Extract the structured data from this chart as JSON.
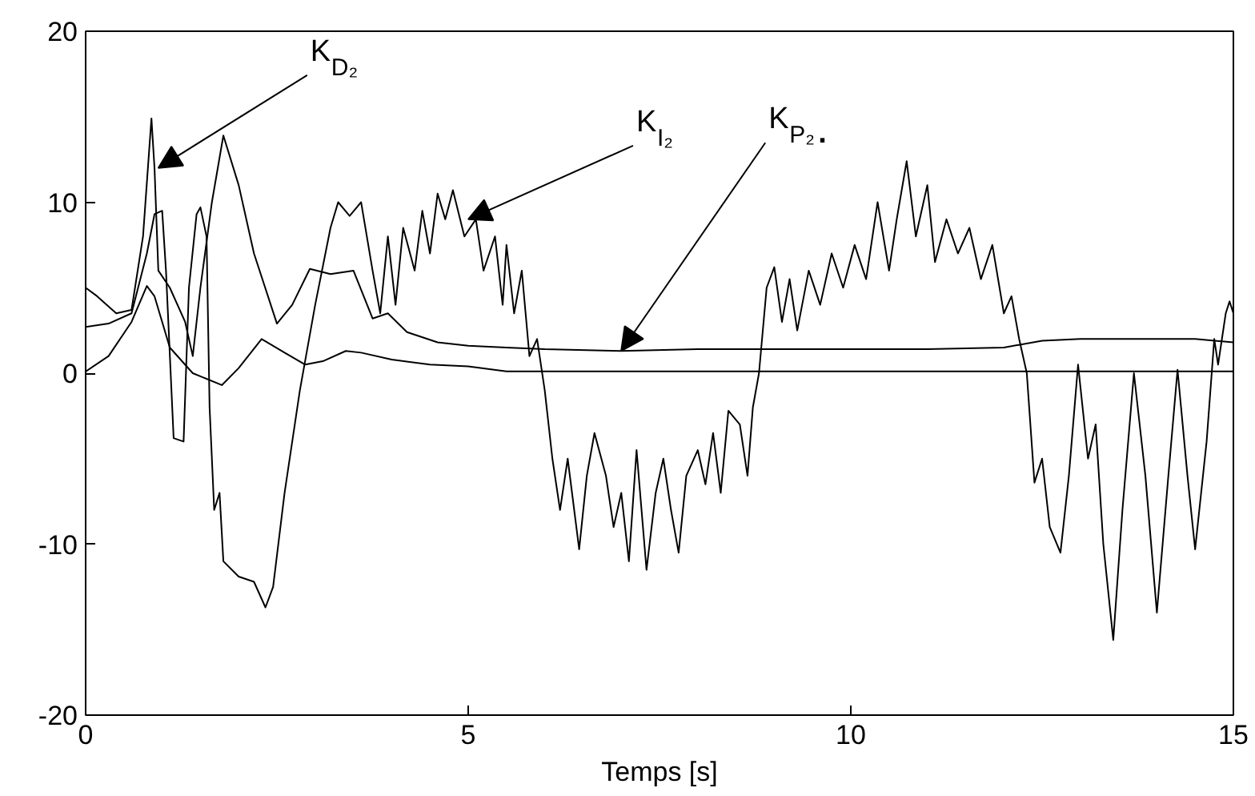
{
  "chart_data": {
    "type": "line",
    "xlabel": "Temps [s]",
    "xlim": [
      0,
      15
    ],
    "ylim": [
      -20,
      20
    ],
    "xticks": [
      0,
      5,
      10,
      15
    ],
    "yticks": [
      -20,
      -10,
      0,
      10,
      20
    ],
    "grid": false,
    "line_style": "solid",
    "annotations": [
      {
        "text": "K$_{D₂}$",
        "x": 0.95,
        "y": 12
      },
      {
        "text": "K$_{I₂}$",
        "x": 5.0,
        "y": 9
      },
      {
        "text": "K$_{P₂}$.",
        "x": 7.0,
        "y": 1.3
      }
    ],
    "series": [
      {
        "color": "#000000",
        "x": [
          0,
          0.3,
          0.6,
          0.8,
          0.9,
          1.0,
          1.05,
          1.15,
          1.28,
          1.35,
          1.45,
          1.5,
          1.58,
          1.62,
          1.68,
          1.75,
          1.8,
          2.0,
          2.2,
          2.35,
          2.45,
          2.6,
          2.8,
          3.0,
          3.2,
          3.3,
          3.45,
          3.6,
          3.75,
          3.85,
          3.95,
          4.05,
          4.15,
          4.3,
          4.4,
          4.5,
          4.6,
          4.7,
          4.8,
          4.95,
          5.1,
          5.2,
          5.35,
          5.45,
          5.5,
          5.6,
          5.7,
          5.8,
          5.9,
          6.0,
          6.1,
          6.2,
          6.3,
          6.45,
          6.55,
          6.65,
          6.8,
          6.9,
          7.0,
          7.1,
          7.2,
          7.33,
          7.45,
          7.55,
          7.65,
          7.75,
          7.85,
          8.0,
          8.1,
          8.2,
          8.3,
          8.4,
          8.55,
          8.65,
          8.72,
          8.8,
          8.9,
          9.0,
          9.1,
          9.2,
          9.3,
          9.45,
          9.6,
          9.75,
          9.9,
          10.05,
          10.2,
          10.35,
          10.5,
          10.6,
          10.73,
          10.85,
          11.0,
          11.1,
          11.25,
          11.4,
          11.55,
          11.7,
          11.85,
          12.0,
          12.1,
          12.2,
          12.3,
          12.4,
          12.5,
          12.6,
          12.74,
          12.85,
          12.97,
          13.1,
          13.2,
          13.3,
          13.43,
          13.55,
          13.7,
          13.85,
          14.0,
          14.15,
          14.27,
          14.4,
          14.5,
          14.65,
          14.75,
          14.8,
          14.9,
          14.95,
          15
        ],
        "values": [
          2.7,
          2.9,
          3.5,
          7,
          9.3,
          9.5,
          6,
          -3.8,
          -4,
          5,
          9.3,
          9.7,
          8,
          -2,
          -8,
          -7,
          -11,
          -11.9,
          -12.2,
          -13.7,
          -12.5,
          -7,
          -1,
          4,
          8.5,
          10,
          9.2,
          10,
          6,
          3.5,
          8,
          4,
          8.5,
          6,
          9.5,
          7,
          10.5,
          9,
          10.7,
          8,
          9,
          6,
          8,
          4,
          7.5,
          3.5,
          6,
          1,
          2,
          -1,
          -5,
          -8,
          -5,
          -10.3,
          -6,
          -3.5,
          -6,
          -9,
          -7,
          -11,
          -4.5,
          -11.5,
          -7,
          -5,
          -8,
          -10.5,
          -6,
          -4.5,
          -6.5,
          -3.5,
          -7,
          -2.2,
          -3,
          -6,
          -2,
          0,
          5,
          6.2,
          3,
          5.5,
          2.5,
          6,
          4,
          7,
          5,
          7.5,
          5.5,
          10,
          6,
          9,
          12.4,
          8,
          11,
          6.5,
          9,
          7,
          8.5,
          5.5,
          7.5,
          3.5,
          4.5,
          2,
          0,
          -6.4,
          -5,
          -9,
          -10.5,
          -6,
          0.5,
          -5,
          -3,
          -10,
          -15.6,
          -8,
          0,
          -6,
          -14,
          -6,
          0.2,
          -6,
          -10.3,
          -4,
          2,
          0.5,
          3.5,
          4.2,
          3.5
        ]
      },
      {
        "color": "#000000",
        "x": [
          0,
          0.15,
          0.4,
          0.6,
          0.75,
          0.86,
          0.9,
          0.95,
          1.1,
          1.3,
          1.4,
          1.5,
          1.65,
          1.8,
          2.0,
          2.2,
          2.5,
          2.7,
          2.93,
          3.2,
          3.5,
          3.75,
          3.95,
          4.2,
          4.6,
          5.0,
          5.5,
          6,
          7,
          8,
          9,
          10,
          11,
          12,
          12.5,
          13,
          14,
          14.5,
          15
        ],
        "values": [
          5,
          4.5,
          3.5,
          3.7,
          8,
          14.9,
          12,
          6,
          5,
          3,
          1,
          5,
          10,
          13.9,
          11,
          7,
          2.9,
          4,
          6.1,
          5.8,
          6,
          3.2,
          3.5,
          2.4,
          1.8,
          1.6,
          1.5,
          1.4,
          1.3,
          1.4,
          1.4,
          1.4,
          1.4,
          1.5,
          1.9,
          2.0,
          2.0,
          2.0,
          1.8
        ]
      },
      {
        "color": "#000000",
        "x": [
          0,
          0.3,
          0.6,
          0.8,
          0.9,
          1.1,
          1.4,
          1.78,
          2.0,
          2.3,
          2.6,
          2.87,
          3.1,
          3.4,
          3.6,
          4.0,
          4.5,
          5.0,
          5.5,
          15
        ],
        "values": [
          0.1,
          1,
          3,
          5.1,
          4.5,
          1.5,
          0,
          -0.7,
          0.3,
          2.0,
          1.2,
          0.5,
          0.7,
          1.3,
          1.2,
          0.8,
          0.5,
          0.4,
          0.1,
          0.1
        ]
      }
    ]
  }
}
